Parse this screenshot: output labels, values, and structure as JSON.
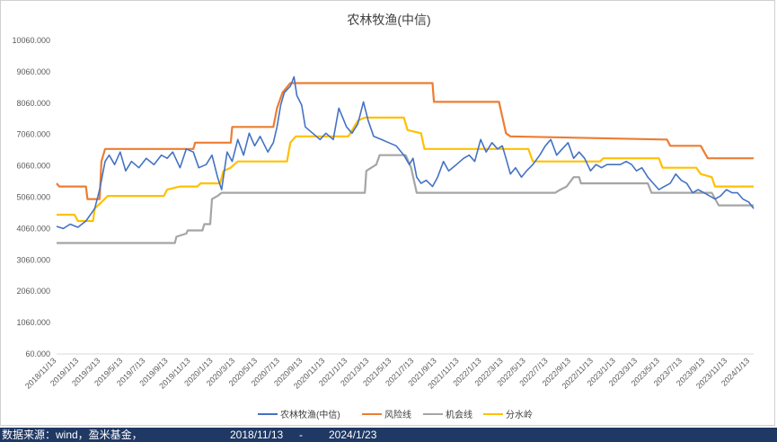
{
  "chart_data": {
    "type": "line",
    "title": "农林牧渔(中信)",
    "xlabel": "",
    "ylabel": "",
    "ylim": [
      60,
      10060
    ],
    "y_ticks": [
      "60.000",
      "1060.000",
      "2060.000",
      "3060.000",
      "4060.000",
      "5060.000",
      "6060.000",
      "7060.000",
      "8060.000",
      "9060.000",
      "10060.000"
    ],
    "x_range": [
      "2018/11/13",
      "2024/1/23"
    ],
    "x_ticks": [
      "2018/11/13",
      "2019/1/13",
      "2019/3/13",
      "2019/5/13",
      "2019/7/13",
      "2019/9/13",
      "2019/11/13",
      "2020/1/13",
      "2020/3/13",
      "2020/5/13",
      "2020/7/13",
      "2020/9/13",
      "2020/11/13",
      "2021/1/13",
      "2021/3/13",
      "2021/5/13",
      "2021/7/13",
      "2021/9/13",
      "2021/11/13",
      "2022/1/13",
      "2022/3/13",
      "2022/5/13",
      "2022/7/13",
      "2022/9/13",
      "2022/11/13",
      "2023/1/13",
      "2023/3/13",
      "2023/5/13",
      "2023/7/13",
      "2023/9/13",
      "2023/11/13",
      "2024/1/13"
    ],
    "grid": false,
    "legend_position": "bottom",
    "series": [
      {
        "name": "农林牧渔(中信)",
        "color": "#4472c4",
        "points": [
          [
            "2018/11/13",
            4130
          ],
          [
            "2018/12/01",
            4060
          ],
          [
            "2018/12/20",
            4200
          ],
          [
            "2019/01/10",
            4100
          ],
          [
            "2019/02/01",
            4300
          ],
          [
            "2019/02/25",
            4700
          ],
          [
            "2019/03/10",
            5300
          ],
          [
            "2019/03/25",
            6200
          ],
          [
            "2019/04/05",
            6400
          ],
          [
            "2019/04/20",
            6100
          ],
          [
            "2019/05/05",
            6500
          ],
          [
            "2019/05/20",
            5900
          ],
          [
            "2019/06/05",
            6200
          ],
          [
            "2019/06/25",
            6000
          ],
          [
            "2019/07/15",
            6300
          ],
          [
            "2019/08/05",
            6100
          ],
          [
            "2019/08/25",
            6400
          ],
          [
            "2019/09/10",
            6300
          ],
          [
            "2019/09/25",
            6500
          ],
          [
            "2019/10/15",
            6000
          ],
          [
            "2019/11/01",
            6600
          ],
          [
            "2019/11/20",
            6500
          ],
          [
            "2019/12/05",
            6000
          ],
          [
            "2019/12/25",
            6100
          ],
          [
            "2020/01/10",
            6400
          ],
          [
            "2020/01/25",
            5700
          ],
          [
            "2020/02/05",
            5300
          ],
          [
            "2020/02/20",
            6500
          ],
          [
            "2020/03/05",
            6200
          ],
          [
            "2020/03/20",
            6900
          ],
          [
            "2020/04/05",
            6400
          ],
          [
            "2020/04/20",
            7100
          ],
          [
            "2020/05/05",
            6700
          ],
          [
            "2020/05/20",
            7000
          ],
          [
            "2020/06/10",
            6500
          ],
          [
            "2020/06/25",
            6800
          ],
          [
            "2020/07/05",
            7300
          ],
          [
            "2020/07/15",
            8000
          ],
          [
            "2020/07/25",
            8400
          ],
          [
            "2020/08/10",
            8600
          ],
          [
            "2020/08/20",
            8900
          ],
          [
            "2020/08/28",
            8300
          ],
          [
            "2020/09/10",
            8000
          ],
          [
            "2020/09/20",
            7300
          ],
          [
            "2020/10/10",
            7100
          ],
          [
            "2020/10/30",
            6900
          ],
          [
            "2020/11/15",
            7100
          ],
          [
            "2020/12/05",
            6900
          ],
          [
            "2020/12/20",
            7900
          ],
          [
            "2021/01/10",
            7300
          ],
          [
            "2021/01/25",
            7100
          ],
          [
            "2021/02/10",
            7400
          ],
          [
            "2021/02/25",
            8100
          ],
          [
            "2021/03/10",
            7500
          ],
          [
            "2021/03/25",
            7000
          ],
          [
            "2021/04/15",
            6900
          ],
          [
            "2021/05/05",
            6800
          ],
          [
            "2021/05/25",
            6700
          ],
          [
            "2021/06/15",
            6400
          ],
          [
            "2021/06/30",
            6100
          ],
          [
            "2021/07/10",
            6300
          ],
          [
            "2021/07/20",
            5700
          ],
          [
            "2021/08/01",
            5500
          ],
          [
            "2021/08/15",
            5600
          ],
          [
            "2021/09/01",
            5400
          ],
          [
            "2021/09/15",
            5700
          ],
          [
            "2021/10/01",
            6200
          ],
          [
            "2021/10/15",
            5900
          ],
          [
            "2021/11/05",
            6100
          ],
          [
            "2021/11/25",
            6300
          ],
          [
            "2021/12/10",
            6400
          ],
          [
            "2021/12/25",
            6200
          ],
          [
            "2022/01/10",
            6900
          ],
          [
            "2022/01/25",
            6500
          ],
          [
            "2022/02/10",
            6800
          ],
          [
            "2022/02/25",
            6600
          ],
          [
            "2022/03/10",
            6700
          ],
          [
            "2022/03/20",
            6300
          ],
          [
            "2022/04/01",
            5800
          ],
          [
            "2022/04/15",
            6000
          ],
          [
            "2022/05/01",
            5700
          ],
          [
            "2022/05/15",
            5900
          ],
          [
            "2022/06/01",
            6100
          ],
          [
            "2022/06/20",
            6400
          ],
          [
            "2022/07/05",
            6700
          ],
          [
            "2022/07/20",
            6900
          ],
          [
            "2022/08/05",
            6400
          ],
          [
            "2022/08/20",
            6600
          ],
          [
            "2022/09/05",
            6800
          ],
          [
            "2022/09/20",
            6300
          ],
          [
            "2022/10/05",
            6500
          ],
          [
            "2022/10/20",
            6300
          ],
          [
            "2022/11/05",
            5900
          ],
          [
            "2022/11/20",
            6100
          ],
          [
            "2022/12/05",
            6000
          ],
          [
            "2022/12/20",
            6100
          ],
          [
            "2023/01/10",
            6100
          ],
          [
            "2023/01/25",
            6100
          ],
          [
            "2023/02/10",
            6200
          ],
          [
            "2023/02/25",
            6100
          ],
          [
            "2023/03/10",
            5900
          ],
          [
            "2023/03/25",
            6000
          ],
          [
            "2023/04/10",
            5700
          ],
          [
            "2023/04/25",
            5500
          ],
          [
            "2023/05/10",
            5300
          ],
          [
            "2023/05/25",
            5400
          ],
          [
            "2023/06/10",
            5500
          ],
          [
            "2023/06/25",
            5800
          ],
          [
            "2023/07/10",
            5600
          ],
          [
            "2023/07/25",
            5500
          ],
          [
            "2023/08/10",
            5200
          ],
          [
            "2023/08/25",
            5300
          ],
          [
            "2023/09/10",
            5200
          ],
          [
            "2023/09/25",
            5100
          ],
          [
            "2023/10/10",
            5000
          ],
          [
            "2023/10/25",
            5100
          ],
          [
            "2023/11/10",
            5300
          ],
          [
            "2023/11/25",
            5200
          ],
          [
            "2023/12/10",
            5200
          ],
          [
            "2023/12/25",
            5000
          ],
          [
            "2024/01/10",
            4900
          ],
          [
            "2024/01/23",
            4700
          ]
        ]
      },
      {
        "name": "风险线",
        "color": "#ed7d31",
        "points": [
          [
            "2018/11/13",
            5500
          ],
          [
            "2018/11/20",
            5400
          ],
          [
            "2019/02/01",
            5400
          ],
          [
            "2019/02/05",
            5000
          ],
          [
            "2019/03/10",
            5000
          ],
          [
            "2019/03/15",
            6200
          ],
          [
            "2019/03/25",
            6600
          ],
          [
            "2019/11/20",
            6600
          ],
          [
            "2019/11/25",
            6800
          ],
          [
            "2020/03/01",
            6800
          ],
          [
            "2020/03/05",
            7300
          ],
          [
            "2020/06/25",
            7300
          ],
          [
            "2020/07/05",
            7900
          ],
          [
            "2020/07/20",
            8400
          ],
          [
            "2020/08/10",
            8700
          ],
          [
            "2021/09/01",
            8700
          ],
          [
            "2021/09/05",
            8100
          ],
          [
            "2022/03/01",
            8100
          ],
          [
            "2022/03/20",
            7100
          ],
          [
            "2022/04/01",
            7000
          ],
          [
            "2023/05/25",
            6900
          ],
          [
            "2023/06/01",
            6900
          ],
          [
            "2023/06/10",
            6700
          ],
          [
            "2023/09/01",
            6700
          ],
          [
            "2023/09/20",
            6300
          ],
          [
            "2024/01/23",
            6300
          ]
        ]
      },
      {
        "name": "机会线",
        "color": "#a5a5a5",
        "points": [
          [
            "2018/11/13",
            3600
          ],
          [
            "2019/10/01",
            3600
          ],
          [
            "2019/10/05",
            3800
          ],
          [
            "2019/11/01",
            3900
          ],
          [
            "2019/11/05",
            4000
          ],
          [
            "2019/12/15",
            4000
          ],
          [
            "2019/12/20",
            4200
          ],
          [
            "2020/01/05",
            4200
          ],
          [
            "2020/01/10",
            5000
          ],
          [
            "2020/01/25",
            5100
          ],
          [
            "2020/02/05",
            5200
          ],
          [
            "2021/03/01",
            5200
          ],
          [
            "2021/03/05",
            5900
          ],
          [
            "2021/04/01",
            6100
          ],
          [
            "2021/04/10",
            6400
          ],
          [
            "2021/06/20",
            6400
          ],
          [
            "2021/07/05",
            6000
          ],
          [
            "2021/07/20",
            5200
          ],
          [
            "2022/07/01",
            5200
          ],
          [
            "2022/08/01",
            5200
          ],
          [
            "2022/08/15",
            5300
          ],
          [
            "2022/09/01",
            5400
          ],
          [
            "2022/09/20",
            5700
          ],
          [
            "2022/10/05",
            5700
          ],
          [
            "2022/10/10",
            5500
          ],
          [
            "2023/04/10",
            5500
          ],
          [
            "2023/04/20",
            5200
          ],
          [
            "2023/10/01",
            5200
          ],
          [
            "2023/10/20",
            4800
          ],
          [
            "2024/01/23",
            4800
          ]
        ]
      },
      {
        "name": "分水岭",
        "color": "#ffc000",
        "points": [
          [
            "2018/11/13",
            4500
          ],
          [
            "2019/01/01",
            4500
          ],
          [
            "2019/01/10",
            4300
          ],
          [
            "2019/02/20",
            4300
          ],
          [
            "2019/02/25",
            4700
          ],
          [
            "2019/03/15",
            4900
          ],
          [
            "2019/04/01",
            5100
          ],
          [
            "2019/09/01",
            5100
          ],
          [
            "2019/09/10",
            5300
          ],
          [
            "2019/10/15",
            5400
          ],
          [
            "2019/12/01",
            5400
          ],
          [
            "2019/12/10",
            5500
          ],
          [
            "2020/02/01",
            5500
          ],
          [
            "2020/02/10",
            5900
          ],
          [
            "2020/03/01",
            6000
          ],
          [
            "2020/03/10",
            6100
          ],
          [
            "2020/03/20",
            6200
          ],
          [
            "2020/08/01",
            6200
          ],
          [
            "2020/08/10",
            6800
          ],
          [
            "2020/08/25",
            7000
          ],
          [
            "2020/12/01",
            7000
          ],
          [
            "2021/01/15",
            7000
          ],
          [
            "2021/02/10",
            7500
          ],
          [
            "2021/03/01",
            7600
          ],
          [
            "2021/06/15",
            7600
          ],
          [
            "2021/06/25",
            7200
          ],
          [
            "2021/08/01",
            7100
          ],
          [
            "2021/08/10",
            6600
          ],
          [
            "2022/05/20",
            6600
          ],
          [
            "2022/06/01",
            6200
          ],
          [
            "2022/12/01",
            6200
          ],
          [
            "2022/12/10",
            6300
          ],
          [
            "2023/05/10",
            6300
          ],
          [
            "2023/05/20",
            6000
          ],
          [
            "2023/08/20",
            6000
          ],
          [
            "2023/09/01",
            5800
          ],
          [
            "2023/10/01",
            5700
          ],
          [
            "2023/10/10",
            5400
          ],
          [
            "2024/01/23",
            5400
          ]
        ]
      }
    ]
  },
  "footer": {
    "source": "数据来源：wind，盈米基金，",
    "date_start": "2018/11/13",
    "date_sep": "-",
    "date_end": "2024/1/23"
  }
}
